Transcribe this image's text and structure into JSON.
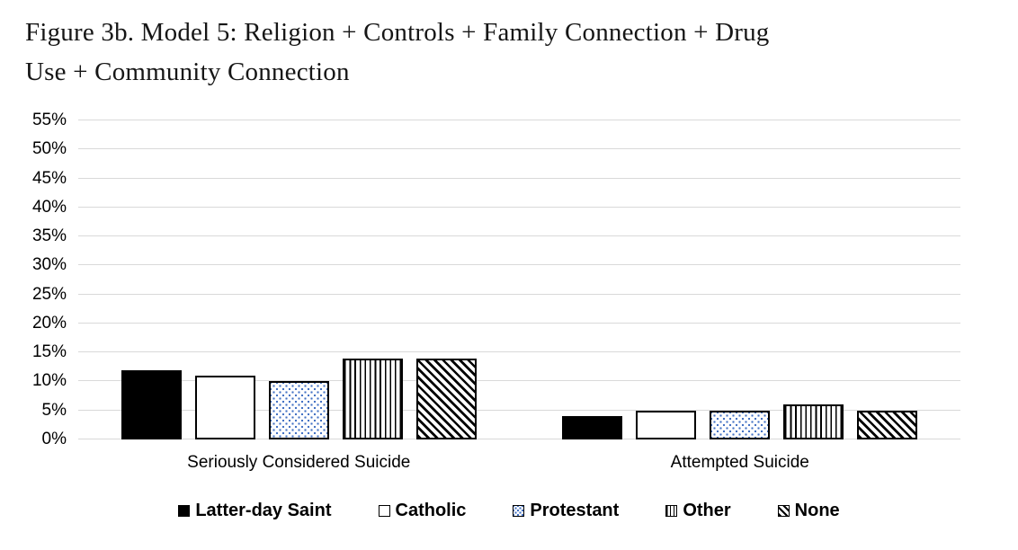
{
  "title_lines": [
    "Figure 3b. Model 5: Religion + Controls + Family Connection + Drug",
    "Use + Community Connection"
  ],
  "colors": {
    "background": "#ffffff",
    "gridline": "#d9d9d9",
    "bar_stroke": "#000000",
    "dot_fill": "#4472c4",
    "text": "#000000"
  },
  "chart_data": {
    "type": "bar",
    "title": "Figure 3b. Model 5: Religion + Controls + Family Connection + Drug Use + Community Connection",
    "categories": [
      "Seriously Considered Suicide",
      "Attempted Suicide"
    ],
    "series": [
      {
        "name": "Latter-day Saint",
        "pattern": "solid-black",
        "values": [
          12,
          4
        ]
      },
      {
        "name": "Catholic",
        "pattern": "plain-white",
        "values": [
          11,
          5
        ]
      },
      {
        "name": "Protestant",
        "pattern": "blue-dots",
        "values": [
          10,
          5
        ]
      },
      {
        "name": "Other",
        "pattern": "vertical-stripes",
        "values": [
          14,
          6
        ]
      },
      {
        "name": "None",
        "pattern": "diagonal-stripes",
        "values": [
          14,
          5
        ]
      }
    ],
    "xlabel": "",
    "ylabel": "",
    "ylim": [
      0,
      55
    ],
    "y_tick_step": 5,
    "y_ticks": [
      "0%",
      "5%",
      "10%",
      "15%",
      "20%",
      "25%",
      "30%",
      "35%",
      "40%",
      "45%",
      "50%",
      "55%"
    ],
    "grid": true,
    "legend_position": "bottom"
  }
}
